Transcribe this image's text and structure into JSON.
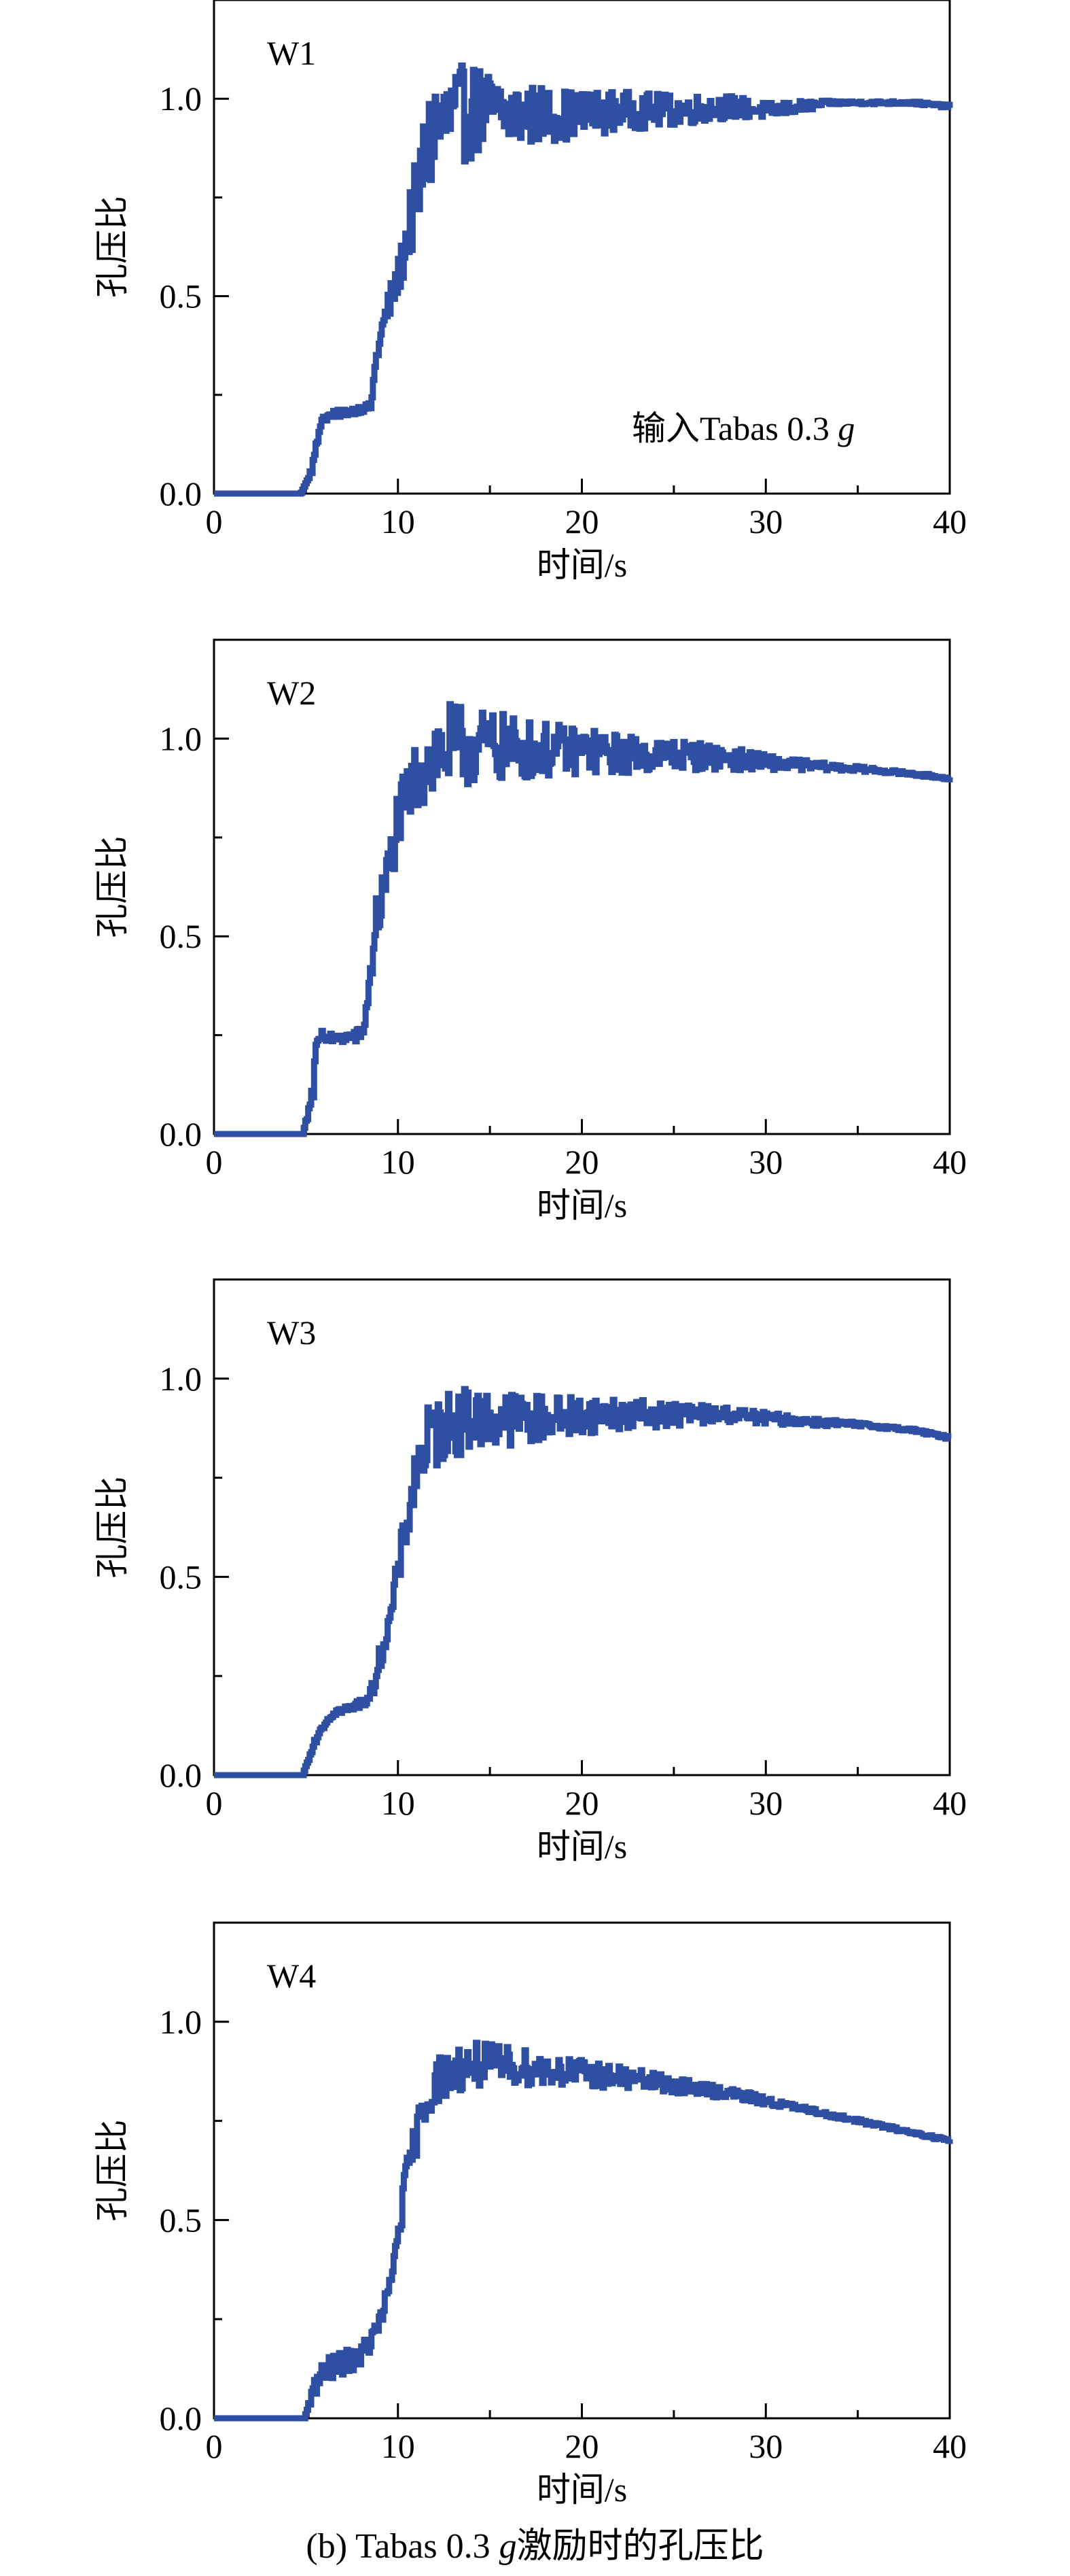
{
  "caption": {
    "prefix": "(b) Tabas 0.3 ",
    "italic": "g",
    "suffix": "激励时的孔压比"
  },
  "line_color": "#2f4fa3",
  "chart_data": [
    {
      "type": "line",
      "panel_label": "W1",
      "annotation": {
        "prefix": "输入Tabas 0.3 ",
        "italic": "g"
      },
      "xlabel": "时间/s",
      "ylabel": "孔压比",
      "xlim": [
        0,
        40
      ],
      "ylim": [
        0,
        1.25
      ],
      "xticks": [
        "0",
        "10",
        "20",
        "30",
        "40"
      ],
      "yticks": [
        "0.0",
        "0.5",
        "1.0"
      ],
      "series": [
        {
          "x": [
            0,
            4.7,
            5.0,
            5.4,
            5.8,
            6.5,
            7.5,
            8.5,
            8.8,
            9.3,
            10.0,
            10.5,
            11.0,
            11.6,
            12.0,
            13.0,
            14.0,
            15.0,
            16.0,
            18.0,
            20.0,
            22.0,
            25.0,
            28.0,
            30.0,
            32.0,
            33.5,
            35.0,
            38.0,
            40.0
          ],
          "y": [
            0,
            0,
            0.03,
            0.08,
            0.19,
            0.2,
            0.21,
            0.22,
            0.35,
            0.45,
            0.55,
            0.66,
            0.75,
            0.88,
            0.93,
            0.95,
            0.97,
            0.97,
            0.96,
            0.96,
            0.96,
            0.97,
            0.97,
            0.98,
            0.97,
            0.98,
            0.99,
            0.99,
            0.99,
            0.98
          ],
          "noise_amp": [
            0,
            0,
            0,
            0.02,
            0.01,
            0.01,
            0.01,
            0.01,
            0.03,
            0.04,
            0.05,
            0.08,
            0.11,
            0.14,
            0.14,
            0.13,
            0.12,
            0.1,
            0.09,
            0.07,
            0.06,
            0.05,
            0.04,
            0.03,
            0.02,
            0.015,
            0.005,
            0.004,
            0.004,
            0.004
          ]
        }
      ]
    },
    {
      "type": "line",
      "panel_label": "W2",
      "xlabel": "时间/s",
      "ylabel": "孔压比",
      "xlim": [
        0,
        40
      ],
      "ylim": [
        0,
        1.25
      ],
      "xticks": [
        "0",
        "10",
        "20",
        "30",
        "40"
      ],
      "yticks": [
        "0.0",
        "0.5",
        "1.0"
      ],
      "series": [
        {
          "x": [
            0,
            4.8,
            5.2,
            5.4,
            5.7,
            6.5,
            8.0,
            8.4,
            8.7,
            9.3,
            10.0,
            10.6,
            11.2,
            12.0,
            13.0,
            15.0,
            18.0,
            20.0,
            22.0,
            25.0,
            28.0,
            30.0,
            33.0,
            36.0,
            40.0
          ],
          "y": [
            0,
            0,
            0.08,
            0.15,
            0.25,
            0.24,
            0.25,
            0.36,
            0.52,
            0.63,
            0.8,
            0.86,
            0.93,
            0.96,
            0.98,
            0.98,
            0.97,
            0.97,
            0.96,
            0.96,
            0.95,
            0.94,
            0.93,
            0.92,
            0.9
          ],
          "noise_amp": [
            0,
            0,
            0.03,
            0.05,
            0.02,
            0.01,
            0.02,
            0.06,
            0.07,
            0.07,
            0.08,
            0.08,
            0.11,
            0.12,
            0.11,
            0.09,
            0.07,
            0.06,
            0.05,
            0.04,
            0.03,
            0.02,
            0.01,
            0.005,
            0.004
          ]
        }
      ]
    },
    {
      "type": "line",
      "panel_label": "W3",
      "xlabel": "时间/s",
      "ylabel": "孔压比",
      "xlim": [
        0,
        40
      ],
      "ylim": [
        0,
        1.25
      ],
      "xticks": [
        "0",
        "10",
        "20",
        "30",
        "40"
      ],
      "yticks": [
        "0.0",
        "0.5",
        "1.0"
      ],
      "series": [
        {
          "x": [
            0,
            4.8,
            5.3,
            5.8,
            6.5,
            7.5,
            8.5,
            9.0,
            9.5,
            10.0,
            10.5,
            11.0,
            11.6,
            12.5,
            14.0,
            16.0,
            18.0,
            20.0,
            22.0,
            25.0,
            28.0,
            30.0,
            33.0,
            36.0,
            38.0,
            40.0
          ],
          "y": [
            0,
            0,
            0.07,
            0.12,
            0.16,
            0.17,
            0.2,
            0.3,
            0.38,
            0.52,
            0.65,
            0.78,
            0.84,
            0.88,
            0.9,
            0.9,
            0.9,
            0.91,
            0.91,
            0.91,
            0.91,
            0.9,
            0.89,
            0.88,
            0.87,
            0.85
          ],
          "noise_amp": [
            0,
            0,
            0.01,
            0.01,
            0.01,
            0.01,
            0.02,
            0.03,
            0.04,
            0.05,
            0.06,
            0.08,
            0.09,
            0.09,
            0.08,
            0.07,
            0.06,
            0.05,
            0.04,
            0.03,
            0.02,
            0.015,
            0.01,
            0.005,
            0.004,
            0.004
          ]
        }
      ]
    },
    {
      "type": "line",
      "panel_label": "W4",
      "xlabel": "时间/s",
      "ylabel": "孔压比",
      "xlim": [
        0,
        40
      ],
      "ylim": [
        0,
        1.25
      ],
      "xticks": [
        "0",
        "10",
        "20",
        "30",
        "40"
      ],
      "yticks": [
        "0.0",
        "0.5",
        "1.0"
      ],
      "series": [
        {
          "x": [
            0,
            4.9,
            5.3,
            6.0,
            7.0,
            8.0,
            8.8,
            9.5,
            10.0,
            10.5,
            11.0,
            11.5,
            12.0,
            13.0,
            14.0,
            16.0,
            18.0,
            20.0,
            22.0,
            25.0,
            28.0,
            30.0,
            33.0,
            36.0,
            38.0,
            40.0
          ],
          "y": [
            0,
            0,
            0.07,
            0.12,
            0.14,
            0.16,
            0.22,
            0.32,
            0.48,
            0.62,
            0.72,
            0.8,
            0.85,
            0.88,
            0.89,
            0.89,
            0.88,
            0.87,
            0.86,
            0.84,
            0.82,
            0.8,
            0.77,
            0.74,
            0.72,
            0.7
          ],
          "noise_amp": [
            0,
            0,
            0.03,
            0.03,
            0.03,
            0.03,
            0.03,
            0.03,
            0.04,
            0.05,
            0.05,
            0.06,
            0.06,
            0.06,
            0.06,
            0.05,
            0.04,
            0.035,
            0.03,
            0.02,
            0.015,
            0.01,
            0.006,
            0.005,
            0.004,
            0.004
          ]
        }
      ]
    }
  ]
}
